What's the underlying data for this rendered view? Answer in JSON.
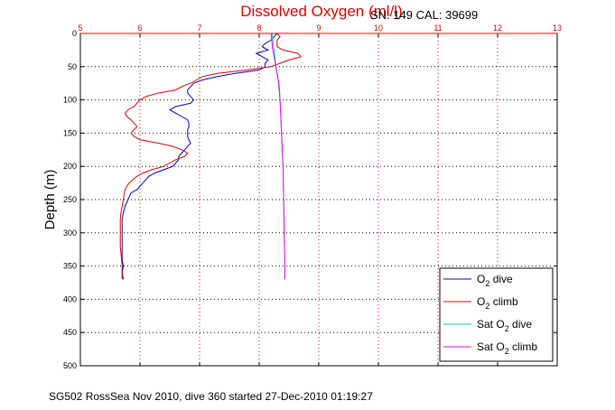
{
  "chart_data": {
    "type": "line",
    "title": "Dissolved Oxygen (ml/l)",
    "instrument_label": "SN: 149  CAL: 39699",
    "ylabel": "Depth (m)",
    "caption": "SG502 RossSea Nov 2010, dive 360 started 27-Dec-2010 01:19:27",
    "xlim": [
      5,
      13
    ],
    "ylim": [
      0,
      500
    ],
    "y_reversed": true,
    "x_axis_position": "top",
    "x_ticks": [
      "5",
      "6",
      "7",
      "8",
      "9",
      "10",
      "11",
      "12",
      "13"
    ],
    "y_ticks": [
      "0",
      "50",
      "100",
      "150",
      "200",
      "250",
      "300",
      "350",
      "400",
      "450",
      "500"
    ],
    "grid": true,
    "legend_position": "bottom-right",
    "series": [
      {
        "name_prefix": "O",
        "name_sub": "2",
        "name_suffix": " dive",
        "color": "#0000cc",
        "depth": [
          0,
          5,
          10,
          15,
          20,
          25,
          30,
          35,
          40,
          45,
          50,
          55,
          60,
          65,
          70,
          75,
          80,
          85,
          90,
          95,
          100,
          105,
          110,
          115,
          120,
          125,
          130,
          135,
          140,
          145,
          150,
          155,
          160,
          165,
          170,
          175,
          180,
          185,
          190,
          195,
          200,
          205,
          210,
          215,
          220,
          225,
          230,
          235,
          240,
          250,
          260,
          270,
          280,
          290,
          300,
          310,
          320,
          330,
          340,
          350,
          360,
          370
        ],
        "o2": [
          8.3,
          8.25,
          8.2,
          8.1,
          8.05,
          8.15,
          7.95,
          8.05,
          8.15,
          8.1,
          8.1,
          8.0,
          7.6,
          7.3,
          7.05,
          6.9,
          6.85,
          6.8,
          6.8,
          6.85,
          6.9,
          6.85,
          6.6,
          6.5,
          6.6,
          6.7,
          6.8,
          6.82,
          6.82,
          6.8,
          6.8,
          6.8,
          6.82,
          6.85,
          6.8,
          6.75,
          6.7,
          6.65,
          6.65,
          6.6,
          6.55,
          6.4,
          6.25,
          6.15,
          6.1,
          6.05,
          6.0,
          5.95,
          5.85,
          5.8,
          5.75,
          5.72,
          5.7,
          5.7,
          5.7,
          5.7,
          5.7,
          5.7,
          5.7,
          5.72,
          5.7,
          5.72
        ]
      },
      {
        "name_prefix": "O",
        "name_sub": "2",
        "name_suffix": " climb",
        "color": "#dd0000",
        "depth": [
          0,
          5,
          10,
          15,
          20,
          25,
          30,
          35,
          40,
          45,
          50,
          55,
          60,
          65,
          70,
          75,
          80,
          85,
          90,
          95,
          100,
          105,
          110,
          115,
          120,
          125,
          130,
          135,
          140,
          145,
          150,
          155,
          160,
          165,
          170,
          175,
          180,
          185,
          190,
          195,
          200,
          205,
          210,
          215,
          220,
          225,
          230,
          235,
          240,
          250,
          260,
          270,
          280,
          290,
          300,
          310,
          320,
          330,
          340,
          350,
          360,
          370
        ],
        "o2": [
          8.3,
          8.35,
          8.3,
          8.3,
          8.3,
          8.4,
          8.65,
          8.7,
          8.5,
          8.35,
          8.2,
          7.8,
          7.3,
          7.05,
          6.95,
          6.85,
          6.7,
          6.6,
          6.3,
          6.1,
          6.0,
          5.95,
          5.9,
          5.8,
          5.75,
          5.78,
          5.85,
          5.9,
          5.95,
          5.9,
          5.85,
          5.9,
          6.0,
          6.3,
          6.55,
          6.7,
          6.8,
          6.75,
          6.6,
          6.5,
          6.4,
          6.2,
          6.05,
          5.95,
          5.88,
          5.82,
          5.78,
          5.75,
          5.74,
          5.72,
          5.7,
          5.68,
          5.67,
          5.67,
          5.67,
          5.67,
          5.67,
          5.68,
          5.69,
          5.7,
          5.7,
          5.7
        ]
      },
      {
        "name_prefix": "Sat O",
        "name_sub": "2",
        "name_suffix": " dive",
        "color": "#00cccc",
        "depth": [
          0,
          10,
          20,
          30,
          40,
          50,
          60,
          70,
          80,
          100,
          120,
          140,
          160,
          180,
          200,
          250,
          300,
          350,
          370
        ],
        "o2": [
          8.22,
          8.23,
          8.24,
          8.26,
          8.27,
          8.28,
          8.3,
          8.32,
          8.34,
          8.35,
          8.36,
          8.37,
          8.38,
          8.39,
          8.4,
          8.41,
          8.42,
          8.43,
          8.43
        ]
      },
      {
        "name_prefix": "Sat O",
        "name_sub": "2",
        "name_suffix": " climb",
        "color": "#ee00ee",
        "depth": [
          0,
          10,
          20,
          30,
          40,
          50,
          60,
          70,
          80,
          100,
          120,
          140,
          160,
          180,
          200,
          250,
          300,
          350,
          370
        ],
        "o2": [
          8.2,
          8.21,
          8.22,
          8.24,
          8.26,
          8.28,
          8.3,
          8.32,
          8.33,
          8.35,
          8.36,
          8.37,
          8.38,
          8.39,
          8.4,
          8.41,
          8.42,
          8.43,
          8.43
        ]
      }
    ]
  }
}
